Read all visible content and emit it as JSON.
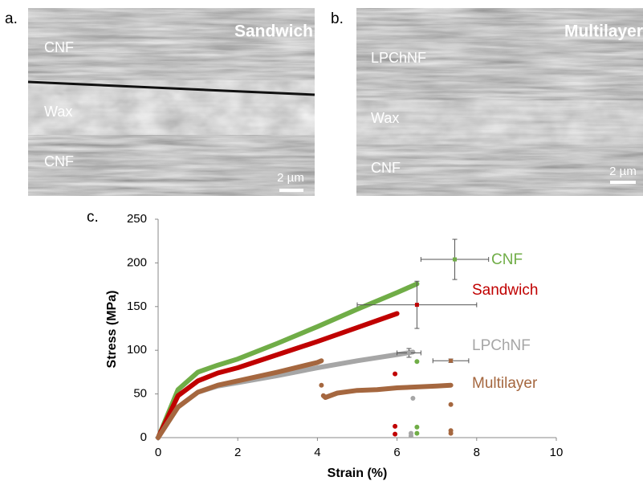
{
  "panels": [
    {
      "label": "a.",
      "title": "Sandwich",
      "layers": [
        "CNF",
        "Wax",
        "CNF"
      ],
      "scale_bar": "2 µm"
    },
    {
      "label": "b.",
      "title": "Multilayer",
      "layers": [
        "LPChNF",
        "Wax",
        "CNF"
      ],
      "scale_bar": "2 µm"
    }
  ],
  "chart_data": {
    "type": "line",
    "panel_label": "c.",
    "x_label": "Strain (%)",
    "y_label": "Stress (MPa)",
    "xlim": [
      0,
      10
    ],
    "xticks": [
      0,
      2,
      4,
      6,
      8,
      10
    ],
    "ylim": [
      0,
      250
    ],
    "yticks": [
      0,
      50,
      100,
      150,
      200,
      250
    ],
    "series": [
      {
        "name": "CNF",
        "color": "#70ad47",
        "x": [
          0,
          0.5,
          1,
          1.5,
          2,
          3,
          4,
          5,
          6,
          6.5,
          null,
          6.5,
          null,
          6.5,
          null,
          6.5
        ],
        "values": [
          0,
          55,
          75,
          83,
          90,
          108,
          127,
          147,
          166,
          176,
          null,
          87,
          null,
          12,
          null,
          5
        ],
        "mean": {
          "x": 7.45,
          "y": 204,
          "xerr": 0.85,
          "yerr": 23
        }
      },
      {
        "name": "Sandwich",
        "color": "#c00000",
        "x": [
          0,
          0.5,
          1,
          1.5,
          2,
          3,
          4,
          5,
          6,
          null,
          5.95,
          null,
          5.95,
          null,
          5.95
        ],
        "values": [
          0,
          48,
          65,
          74,
          80,
          95,
          110,
          126,
          142,
          null,
          73,
          null,
          13,
          null,
          4
        ],
        "mean": {
          "x": 6.5,
          "y": 152,
          "xerr": 1.5,
          "yerr": 27
        }
      },
      {
        "name": "LPChNF",
        "color": "#a6a6a6",
        "x": [
          0,
          0.5,
          1,
          1.5,
          2,
          3,
          4,
          5,
          6,
          6.4,
          null,
          6.4,
          null,
          6.35,
          null,
          6.35
        ],
        "values": [
          0,
          35,
          52,
          59,
          63,
          71,
          80,
          88,
          95,
          98,
          null,
          45,
          null,
          5,
          null,
          2
        ],
        "mean": {
          "x": 6.3,
          "y": 97,
          "xerr": 0.3,
          "yerr": 5
        }
      },
      {
        "name": "Multilayer",
        "color": "#a5673f",
        "x": [
          0,
          0.5,
          1,
          1.5,
          2,
          3,
          4,
          4.1,
          null,
          4.1,
          null,
          4.15,
          4.2,
          4.5,
          5,
          5.5,
          6,
          6.5,
          7,
          7.35,
          null,
          7.35,
          null,
          7.35,
          null,
          7.35
        ],
        "values": [
          0,
          35,
          52,
          60,
          65,
          75,
          86,
          88,
          null,
          60,
          null,
          48,
          46,
          51,
          54,
          55,
          57,
          58,
          59,
          60,
          null,
          38,
          null,
          8,
          null,
          5
        ],
        "mean": {
          "x": 7.35,
          "y": 88,
          "xerr": 0.45,
          "yerr": 2
        }
      }
    ]
  }
}
